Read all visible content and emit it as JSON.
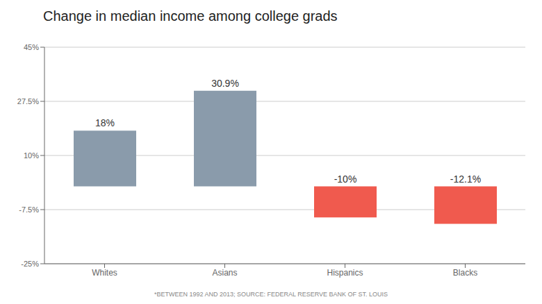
{
  "chart_data": {
    "type": "bar",
    "title": "Change in median income among college grads",
    "categories": [
      "Whites",
      "Asians",
      "Hispanics",
      "Blacks"
    ],
    "values": [
      18,
      30.9,
      -10,
      -12.1
    ],
    "value_labels": [
      "18%",
      "30.9%",
      "-10%",
      "-12.1%"
    ],
    "colors": [
      "#8a9bab",
      "#8a9bab",
      "#f05a4e",
      "#f05a4e"
    ],
    "ylim": [
      -25,
      45
    ],
    "yticks": [
      {
        "value": -25,
        "label": "-25%"
      },
      {
        "value": -7.5,
        "label": "-7.5%"
      },
      {
        "value": 10,
        "label": "10%"
      },
      {
        "value": 27.5,
        "label": "27.5%"
      },
      {
        "value": 45,
        "label": "45%"
      }
    ],
    "grid": true,
    "data_labels": true,
    "annotations": [
      "*BETWEEN 1992 AND 2013; SOURCE: FEDERAL RESERVE BANK OF ST. LOUIS"
    ]
  }
}
